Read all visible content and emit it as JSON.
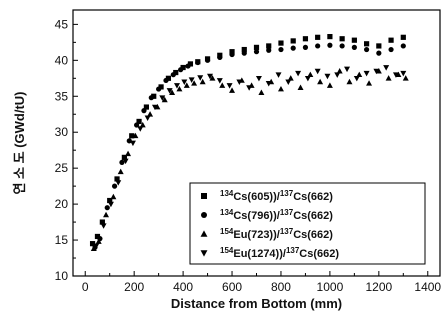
{
  "chart_data": {
    "type": "scatter",
    "xlabel": "Distance from Bottom (mm)",
    "ylabel": "연 소 도 (GWd/tU)",
    "xlim": [
      -50,
      1450
    ],
    "ylim": [
      10,
      47
    ],
    "xticks": [
      0,
      200,
      400,
      600,
      800,
      1000,
      1200,
      1400
    ],
    "yticks": [
      10,
      15,
      20,
      25,
      30,
      35,
      40,
      45
    ],
    "legend_position": "lower-right",
    "series": [
      {
        "name_parts": [
          [
            "134",
            "Cs(605))/"
          ],
          [
            "137",
            "Cs(662)"
          ]
        ],
        "marker": "square",
        "x": [
          30,
          50,
          70,
          100,
          130,
          160,
          190,
          220,
          250,
          280,
          310,
          340,
          370,
          400,
          430,
          460,
          500,
          550,
          600,
          650,
          700,
          750,
          800,
          850,
          900,
          950,
          1000,
          1050,
          1100,
          1150,
          1200,
          1250,
          1300
        ],
        "y": [
          14.5,
          15.5,
          17.5,
          20.5,
          23.5,
          26.5,
          29.5,
          31.5,
          33.5,
          35.0,
          36.3,
          37.5,
          38.3,
          39.0,
          39.5,
          39.8,
          40.2,
          40.7,
          41.2,
          41.5,
          41.8,
          42.0,
          42.4,
          42.7,
          43.0,
          43.2,
          43.3,
          43.0,
          42.8,
          42.3,
          42.0,
          42.8,
          43.2
        ]
      },
      {
        "name_parts": [
          [
            "134",
            "Cs(796))/"
          ],
          [
            "137",
            "Cs(662)"
          ]
        ],
        "marker": "circle",
        "x": [
          40,
          60,
          90,
          120,
          150,
          180,
          210,
          240,
          270,
          300,
          330,
          360,
          390,
          420,
          460,
          500,
          550,
          600,
          650,
          700,
          750,
          800,
          850,
          900,
          950,
          1000,
          1050,
          1100,
          1150,
          1200,
          1250,
          1300
        ],
        "y": [
          14.0,
          15.2,
          19.5,
          22.5,
          25.8,
          28.8,
          31.0,
          33.0,
          34.8,
          36.0,
          37.2,
          38.0,
          38.7,
          39.2,
          39.7,
          40.0,
          40.4,
          40.8,
          41.0,
          41.2,
          41.4,
          41.5,
          41.7,
          41.8,
          42.0,
          42.1,
          42.0,
          41.8,
          41.5,
          41.0,
          41.5,
          42.0
        ]
      },
      {
        "name_parts": [
          [
            "154",
            "Eu(723))/"
          ],
          [
            "137",
            "Cs(662)"
          ]
        ],
        "marker": "triangle-up",
        "x": [
          35,
          55,
          85,
          115,
          145,
          175,
          205,
          235,
          265,
          295,
          325,
          355,
          385,
          415,
          445,
          480,
          520,
          560,
          600,
          640,
          680,
          720,
          760,
          800,
          840,
          880,
          920,
          960,
          1000,
          1040,
          1080,
          1120,
          1160,
          1200,
          1240,
          1280,
          1310
        ],
        "y": [
          13.8,
          14.8,
          18.5,
          21.0,
          24.5,
          27.0,
          29.5,
          31.0,
          32.5,
          33.5,
          34.5,
          35.5,
          36.0,
          36.5,
          36.8,
          37.0,
          37.5,
          36.5,
          35.8,
          37.2,
          36.5,
          35.5,
          37.0,
          36.0,
          37.5,
          36.2,
          38.0,
          37.0,
          36.5,
          38.5,
          37.0,
          38.0,
          36.8,
          38.5,
          37.5,
          38.0,
          37.5
        ]
      },
      {
        "name_parts": [
          [
            "154",
            "Eu(1274))/"
          ],
          [
            "137",
            "Cs(662)"
          ]
        ],
        "marker": "triangle-down",
        "x": [
          45,
          75,
          105,
          135,
          165,
          195,
          225,
          255,
          285,
          315,
          345,
          375,
          405,
          435,
          470,
          510,
          550,
          590,
          630,
          670,
          710,
          750,
          790,
          830,
          870,
          910,
          950,
          990,
          1030,
          1070,
          1110,
          1150,
          1190,
          1230,
          1270,
          1300
        ],
        "y": [
          14.2,
          17.0,
          20.0,
          23.0,
          26.0,
          28.5,
          30.5,
          32.0,
          33.5,
          34.8,
          35.8,
          36.5,
          37.0,
          37.3,
          37.6,
          37.8,
          37.2,
          36.5,
          37.0,
          36.2,
          37.5,
          36.8,
          38.0,
          37.0,
          38.2,
          37.5,
          38.5,
          37.8,
          38.0,
          38.8,
          37.5,
          38.2,
          38.5,
          39.0,
          38.0,
          38.2
        ]
      }
    ]
  }
}
